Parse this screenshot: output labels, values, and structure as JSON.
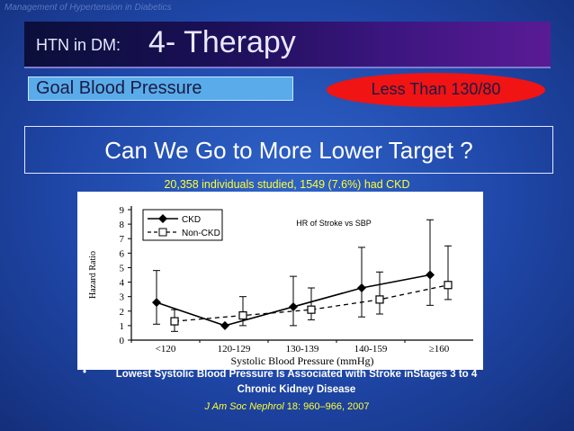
{
  "top_note": "Management of Hypertension in Diabetics",
  "title": {
    "prefix": "HTN in DM:",
    "main": "4- Therapy"
  },
  "goal": {
    "label": "Goal Blood Pressure",
    "value": "Less Than 130/80"
  },
  "question": "Can We Go to More Lower Target ?",
  "study_line": "20,358 individuals studied, 1549 (7.6%) had CKD",
  "chart_data": {
    "type": "line",
    "title": "HR of Stroke vs SBP",
    "xlabel": "Systolic Blood Pressure (mmHg)",
    "ylabel": "Hazard Ratio",
    "categories": [
      "<120",
      "120-129",
      "130-139",
      "140-159",
      "≥160"
    ],
    "ylim": [
      0,
      9
    ],
    "yticks": [
      "0",
      "1",
      "2",
      "3",
      "4",
      "5",
      "6",
      "7",
      "8",
      "9"
    ],
    "legend_position": "top-left",
    "series": [
      {
        "name": "CKD",
        "style": "solid-diamond",
        "values": [
          2.6,
          1.0,
          2.3,
          3.6,
          4.5
        ],
        "ci_low": [
          1.1,
          1.0,
          1.0,
          1.6,
          2.4
        ],
        "ci_high": [
          4.8,
          1.0,
          4.4,
          6.4,
          8.3
        ]
      },
      {
        "name": "Non-CKD",
        "style": "dashed-square",
        "values": [
          1.3,
          1.7,
          2.1,
          2.8,
          3.8
        ],
        "ci_low": [
          0.6,
          1.0,
          1.4,
          1.8,
          2.8
        ],
        "ci_high": [
          2.1,
          3.0,
          3.6,
          4.7,
          6.5
        ]
      }
    ]
  },
  "bullet": {
    "symbol": "•",
    "text": "Lowest Systolic Blood Pressure Is Associated with Stroke inStages 3 to 4 Chronic Kidney Disease"
  },
  "reference": {
    "journal": "J Am Soc Nephrol",
    "detail": " 18: 960–966, 2007"
  }
}
